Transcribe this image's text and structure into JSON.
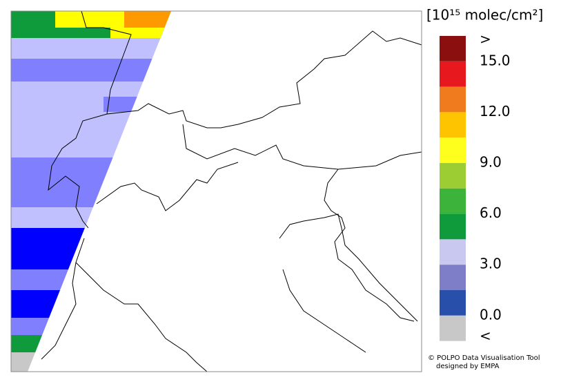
{
  "legend": {
    "title": "[10¹⁵ molec/cm²]",
    "colors": [
      "#8b0f0f",
      "#e8191e",
      "#f07a1e",
      "#ffc400",
      "#ffff1e",
      "#9ccd32",
      "#3cb43c",
      "#0f9b3c",
      "#c8c8f0",
      "#7d7dc8",
      "#2850aa",
      "#c8c8c8"
    ],
    "labels": [
      ">",
      "15.0",
      "12.0",
      "9.0",
      "6.0",
      "3.0",
      "0.0",
      "<"
    ]
  },
  "credits": [
    "© POLPO Data Visualisation Tool",
    "designed by EMPA"
  ]
}
